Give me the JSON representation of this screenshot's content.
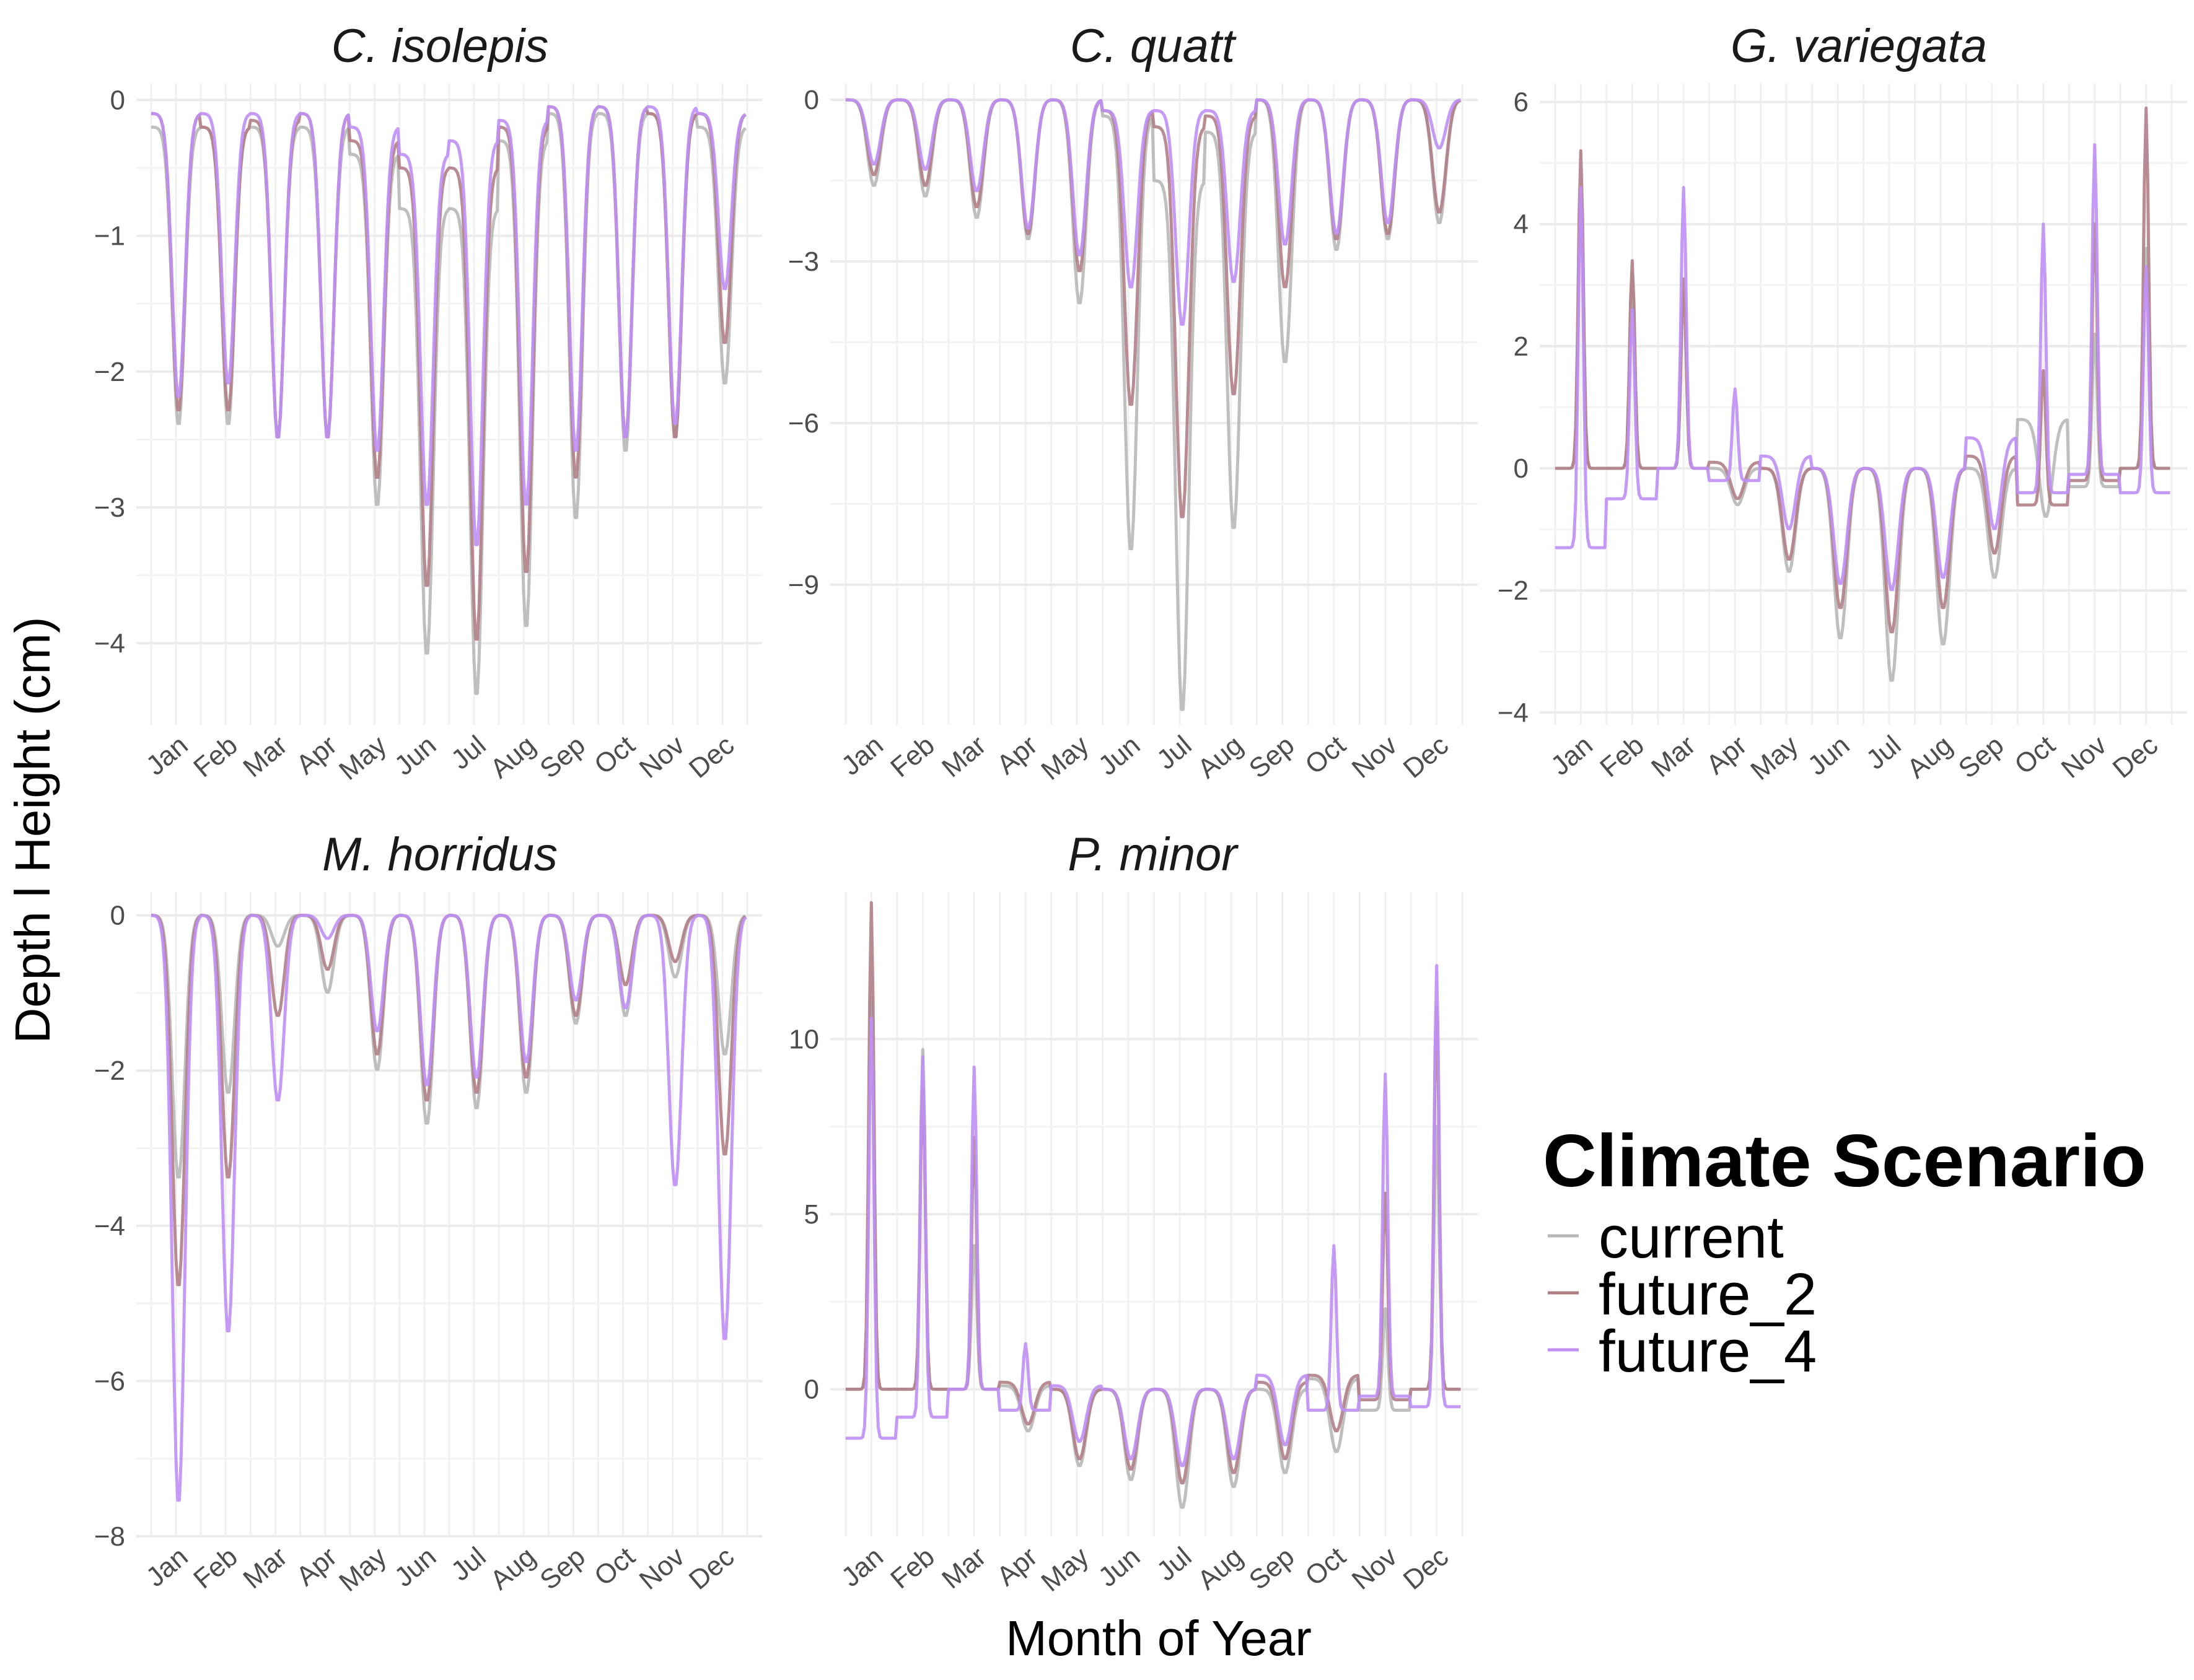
{
  "chart_data": {
    "type": "line",
    "xlabel": "Month of Year",
    "ylabel": "Depth l Height (cm)",
    "months": [
      "Jan",
      "Feb",
      "Mar",
      "Apr",
      "May",
      "Jun",
      "Jul",
      "Aug",
      "Sep",
      "Oct",
      "Nov",
      "Dec"
    ],
    "legend": {
      "title": "Climate Scenario",
      "placement": "right",
      "entries": [
        {
          "name": "current",
          "color": "#b8b8b8"
        },
        {
          "name": "future_2",
          "color": "#b07f86"
        },
        {
          "name": "future_4",
          "color": "#bf8ff5"
        }
      ]
    },
    "grid": true,
    "panels": [
      {
        "title": "C. isolepis",
        "ylim": [
          -4.6,
          0.12
        ],
        "yticks": [
          0,
          -1,
          -2,
          -3,
          -4
        ],
        "ytick_labels": [
          "0",
          "−1",
          "−2",
          "−3",
          "−4"
        ],
        "series": [
          {
            "name": "current",
            "monthly_min": [
              -2.4,
              -2.4,
              -2.5,
              -2.5,
              -3.0,
              -4.1,
              -4.4,
              -3.9,
              -3.1,
              -2.6,
              -2.5,
              -2.1
            ],
            "monthly_max": [
              -0.2,
              -0.2,
              -0.2,
              -0.2,
              -0.4,
              -0.8,
              -0.8,
              -0.3,
              -0.1,
              -0.1,
              -0.1,
              -0.2
            ]
          },
          {
            "name": "future_2",
            "monthly_min": [
              -2.3,
              -2.3,
              -2.5,
              -2.5,
              -2.8,
              -3.6,
              -4.0,
              -3.5,
              -2.8,
              -2.5,
              -2.5,
              -1.8
            ],
            "monthly_max": [
              -0.1,
              -0.2,
              -0.15,
              -0.1,
              -0.3,
              -0.5,
              -0.5,
              -0.2,
              -0.05,
              -0.05,
              -0.1,
              -0.1
            ]
          },
          {
            "name": "future_4",
            "monthly_min": [
              -2.2,
              -2.1,
              -2.5,
              -2.5,
              -2.6,
              -3.0,
              -3.3,
              -3.0,
              -2.6,
              -2.5,
              -2.4,
              -1.4
            ],
            "monthly_max": [
              -0.1,
              -0.1,
              -0.1,
              -0.1,
              -0.2,
              -0.4,
              -0.3,
              -0.15,
              -0.05,
              -0.05,
              -0.05,
              -0.1
            ]
          }
        ]
      },
      {
        "title": "C. quatt",
        "ylim": [
          -11.6,
          0.3
        ],
        "yticks": [
          0,
          -3,
          -6,
          -9
        ],
        "ytick_labels": [
          "0",
          "−3",
          "−6",
          "−9"
        ],
        "series": [
          {
            "name": "current",
            "monthly_min": [
              -1.6,
              -1.8,
              -2.2,
              -2.6,
              -3.8,
              -8.4,
              -11.4,
              -8.0,
              -4.9,
              -2.8,
              -2.6,
              -2.3
            ],
            "monthly_max": [
              0,
              0,
              0,
              0,
              0,
              -0.3,
              -1.5,
              -0.6,
              0,
              0,
              0,
              0
            ]
          },
          {
            "name": "future_2",
            "monthly_min": [
              -1.4,
              -1.6,
              -2.0,
              -2.5,
              -3.2,
              -5.7,
              -7.8,
              -5.5,
              -3.5,
              -2.6,
              -2.5,
              -2.1
            ],
            "monthly_max": [
              0,
              0,
              0,
              0,
              0,
              -0.2,
              -0.5,
              -0.3,
              0,
              0,
              0,
              0
            ]
          },
          {
            "name": "future_4",
            "monthly_min": [
              -1.2,
              -1.3,
              -1.7,
              -2.4,
              -2.9,
              -3.5,
              -4.2,
              -3.4,
              -2.7,
              -2.5,
              -2.3,
              -0.9
            ],
            "monthly_max": [
              0,
              0,
              0,
              0,
              0,
              -0.2,
              -0.2,
              -0.2,
              0,
              0,
              0,
              0
            ]
          }
        ]
      },
      {
        "title": "G. variegata",
        "ylim": [
          -4.2,
          6.3
        ],
        "yticks": [
          6,
          4,
          2,
          0,
          -2,
          -4
        ],
        "ytick_labels": [
          "6",
          "4",
          "2",
          "0",
          "−2",
          "−4"
        ],
        "series": [
          {
            "name": "current",
            "monthly_min": [
              0,
              0,
              0,
              -0.6,
              -1.7,
              -2.8,
              -3.5,
              -2.9,
              -1.8,
              -0.8,
              -0.3,
              0
            ],
            "monthly_max": [
              4.4,
              3.2,
              2.9,
              0,
              0,
              0,
              0,
              0,
              0,
              0.8,
              2.2,
              3.6
            ]
          },
          {
            "name": "future_2",
            "monthly_min": [
              0,
              0,
              0,
              -0.5,
              -1.5,
              -2.3,
              -2.7,
              -2.3,
              -1.4,
              -0.6,
              -0.2,
              0
            ],
            "monthly_max": [
              5.2,
              3.4,
              3.1,
              0.1,
              0,
              0,
              0,
              0,
              0.2,
              1.6,
              4.0,
              5.9
            ]
          },
          {
            "name": "future_4",
            "monthly_min": [
              -1.3,
              -0.5,
              0,
              -0.2,
              -1.0,
              -1.9,
              -2.0,
              -1.8,
              -1.0,
              -0.4,
              -0.1,
              -0.4
            ],
            "monthly_max": [
              4.6,
              2.6,
              4.6,
              1.3,
              0.2,
              0,
              0,
              0,
              0.5,
              4.0,
              5.3,
              3.3
            ]
          }
        ]
      },
      {
        "title": "M. horridus",
        "ylim": [
          -8.0,
          0.3
        ],
        "yticks": [
          0,
          -2,
          -4,
          -6,
          -8
        ],
        "ytick_labels": [
          "0",
          "−2",
          "−4",
          "−6",
          "−8"
        ],
        "series": [
          {
            "name": "current",
            "monthly_min": [
              -3.4,
              -2.3,
              -0.4,
              -1.0,
              -2.0,
              -2.7,
              -2.5,
              -2.3,
              -1.4,
              -1.3,
              -0.8,
              -1.8
            ],
            "monthly_max": [
              0,
              0,
              0,
              0,
              0,
              0,
              0,
              0,
              0,
              0,
              0,
              0
            ]
          },
          {
            "name": "future_2",
            "monthly_min": [
              -4.8,
              -3.4,
              -1.3,
              -0.7,
              -1.8,
              -2.4,
              -2.3,
              -2.1,
              -1.3,
              -0.9,
              -0.6,
              -3.1
            ],
            "monthly_max": [
              0,
              0,
              0,
              0,
              0,
              0,
              0,
              0,
              0,
              0,
              0,
              0
            ]
          },
          {
            "name": "future_4",
            "monthly_min": [
              -7.6,
              -5.4,
              -2.4,
              -0.3,
              -1.5,
              -2.2,
              -2.1,
              -1.9,
              -1.1,
              -1.2,
              -3.5,
              -5.5
            ],
            "monthly_max": [
              0,
              0,
              0,
              0,
              0,
              0,
              0,
              0,
              0,
              0,
              0,
              0
            ]
          }
        ]
      },
      {
        "title": "P. minor",
        "ylim": [
          -4.2,
          14.2
        ],
        "yticks": [
          10,
          5,
          0
        ],
        "ytick_labels": [
          "10",
          "5",
          "0"
        ],
        "series": [
          {
            "name": "current",
            "monthly_min": [
              0,
              0,
              0,
              -1.2,
              -2.2,
              -2.6,
              -3.4,
              -2.8,
              -2.4,
              -1.8,
              -0.6,
              0
            ],
            "monthly_max": [
              11.2,
              9.7,
              4.1,
              0.1,
              0,
              0,
              0,
              0,
              0,
              0.3,
              2.3,
              7.5
            ]
          },
          {
            "name": "future_2",
            "monthly_min": [
              0,
              0,
              0,
              -1.0,
              -2.0,
              -2.3,
              -2.7,
              -2.4,
              -2.0,
              -1.2,
              -0.3,
              0
            ],
            "monthly_max": [
              13.9,
              8.6,
              7.2,
              0.2,
              0,
              0,
              0,
              0,
              0.2,
              0.4,
              5.6,
              10.9
            ]
          },
          {
            "name": "future_4",
            "monthly_min": [
              -1.4,
              -0.8,
              0,
              -0.6,
              -1.5,
              -2.0,
              -2.2,
              -2.0,
              -1.6,
              -0.6,
              -0.2,
              -0.5
            ],
            "monthly_max": [
              10.6,
              9.5,
              9.2,
              1.3,
              0.1,
              0,
              0,
              0,
              0.4,
              4.1,
              9.0,
              12.1
            ]
          }
        ]
      }
    ]
  }
}
